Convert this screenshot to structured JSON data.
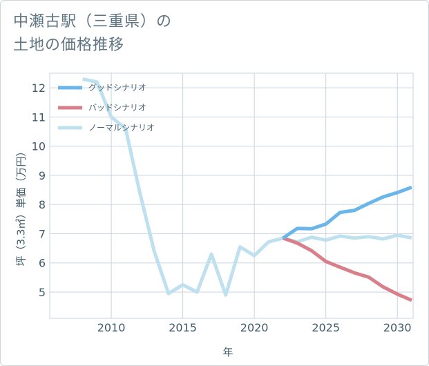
{
  "title": {
    "line1": "中瀬古駅（三重県）の",
    "line2": "土地の価格推移"
  },
  "colors": {
    "good": "#6ab6ea",
    "bad": "#d97f8a",
    "normal": "#bfe0ef",
    "grid": "#c7d3dd",
    "text": "#3f5b6a"
  },
  "chart_data": {
    "type": "line",
    "title": "中瀬古駅（三重県）の土地の価格推移",
    "xlabel": "年",
    "ylabel": "坪（3.3㎡）単価（万円）",
    "xlim": [
      2005.7,
      2031.1
    ],
    "ylim": [
      4.1,
      12.5
    ],
    "xticks": [
      2010,
      2015,
      2020,
      2025,
      2030
    ],
    "yticks": [
      5,
      6,
      7,
      8,
      9,
      10,
      11,
      12
    ],
    "legend_position": "top-left",
    "series": [
      {
        "name": "グッドシナリオ",
        "color_key": "good",
        "x": [
          2022,
          2023,
          2024,
          2025,
          2026,
          2027,
          2028,
          2029,
          2030,
          2031
        ],
        "values": [
          6.85,
          7.18,
          7.17,
          7.33,
          7.73,
          7.8,
          8.04,
          8.26,
          8.41,
          8.59
        ]
      },
      {
        "name": "バッドシナリオ",
        "color_key": "bad",
        "x": [
          2022,
          2023,
          2024,
          2025,
          2026,
          2027,
          2028,
          2029,
          2030,
          2031
        ],
        "values": [
          6.85,
          6.68,
          6.42,
          6.05,
          5.85,
          5.66,
          5.51,
          5.18,
          4.93,
          4.72
        ]
      },
      {
        "name": "ノーマルシナリオ",
        "color_key": "normal",
        "x": [
          2008,
          2009,
          2010,
          2011,
          2012,
          2013,
          2014,
          2015,
          2016,
          2017,
          2018,
          2019,
          2020,
          2021,
          2022,
          2023,
          2024,
          2025,
          2026,
          2027,
          2028,
          2029,
          2030,
          2031
        ],
        "values": [
          12.3,
          12.2,
          11.0,
          10.6,
          8.4,
          6.4,
          4.95,
          5.25,
          5.0,
          6.3,
          4.9,
          6.55,
          6.25,
          6.72,
          6.85,
          6.72,
          6.88,
          6.78,
          6.92,
          6.85,
          6.9,
          6.82,
          6.95,
          6.86
        ]
      }
    ]
  }
}
